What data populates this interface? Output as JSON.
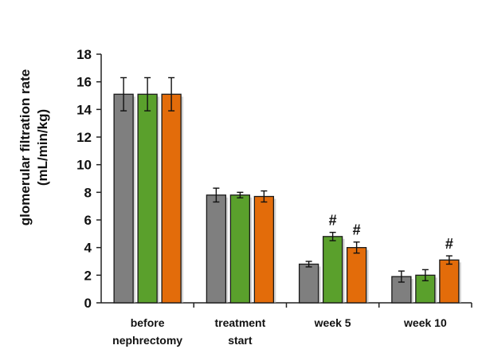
{
  "chart_data": {
    "type": "bar",
    "title": "",
    "ylabel": [
      "glomerular filtration rate",
      "(mL/min/kg)"
    ],
    "xlabel": "",
    "ylim": [
      0,
      18
    ],
    "yticks": [
      0,
      2,
      4,
      6,
      8,
      10,
      12,
      14,
      16,
      18
    ],
    "grid": false,
    "categories": [
      [
        "before",
        "nephrectomy"
      ],
      [
        "treatment",
        "start"
      ],
      [
        "week 5"
      ],
      [
        "week 10"
      ]
    ],
    "series": [
      {
        "color": "#7f7f7f",
        "values": [
          15.1,
          7.8,
          2.8,
          1.9
        ],
        "errors": [
          1.2,
          0.5,
          0.2,
          0.4
        ],
        "annotations": [
          "",
          "",
          "",
          ""
        ]
      },
      {
        "color": "#5aa02c",
        "values": [
          15.1,
          7.8,
          4.8,
          2.0
        ],
        "errors": [
          1.2,
          0.2,
          0.3,
          0.4
        ],
        "annotations": [
          "",
          "",
          "#",
          ""
        ]
      },
      {
        "color": "#e36c0a",
        "values": [
          15.1,
          7.7,
          4.0,
          3.1
        ],
        "errors": [
          1.2,
          0.4,
          0.4,
          0.3
        ],
        "annotations": [
          "",
          "",
          "#",
          "#"
        ]
      }
    ]
  }
}
